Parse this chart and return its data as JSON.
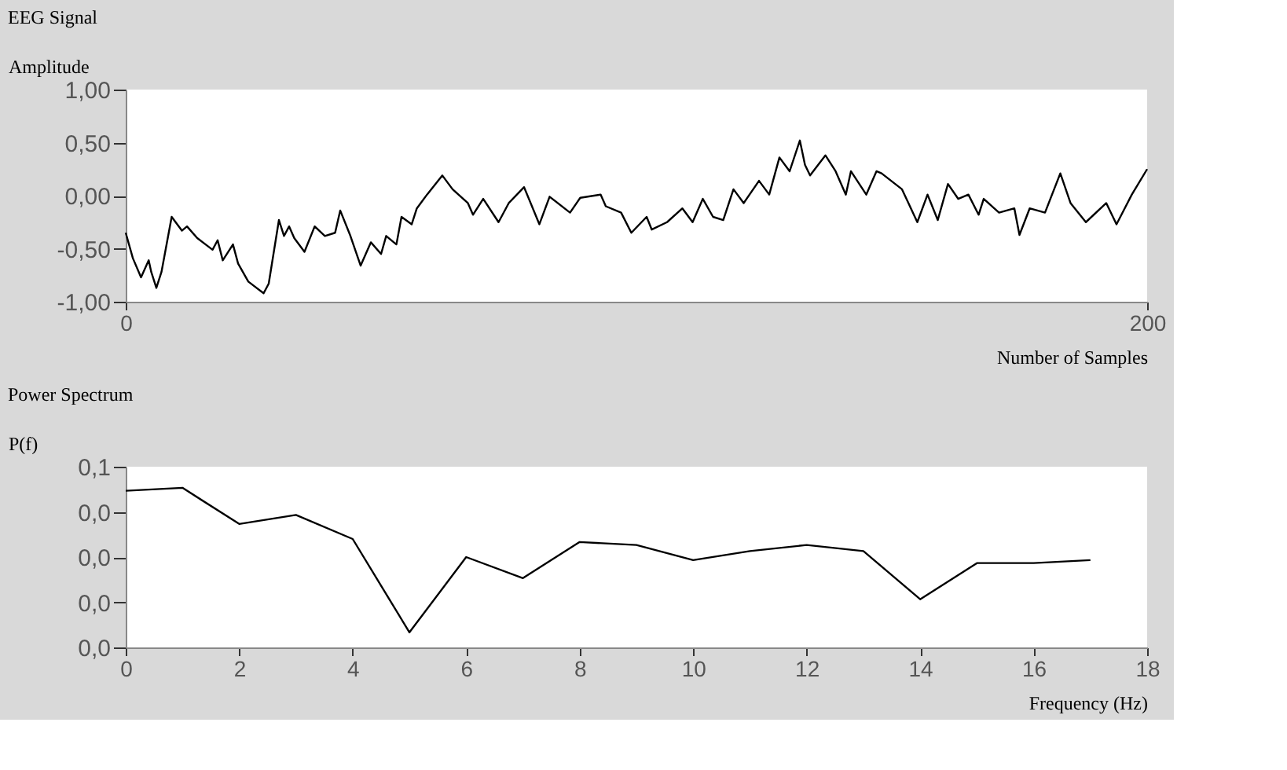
{
  "chart_data": [
    {
      "type": "line",
      "title": "EEG Signal",
      "xlabel": "Number of Samples",
      "ylabel": "Amplitude",
      "xlim": [
        0,
        200
      ],
      "xticks": [
        0,
        200
      ],
      "ylim": [
        -1,
        1
      ],
      "yticks": [
        {
          "value": -1,
          "label": "-1,00"
        },
        {
          "value": -0.5,
          "label": "-0,50"
        },
        {
          "value": 0,
          "label": "0,00"
        },
        {
          "value": 0.5,
          "label": "0,50"
        },
        {
          "value": 1,
          "label": "1,00"
        }
      ],
      "grid": false,
      "series": [
        {
          "color": "#000000",
          "x": [
            0,
            1.4,
            3,
            4.5,
            5,
            6,
            7,
            9,
            11,
            12,
            14,
            17,
            18,
            19,
            21,
            22,
            24,
            27,
            28,
            30,
            31,
            32,
            33,
            35,
            37,
            39,
            41,
            42,
            44,
            46,
            48,
            50,
            51,
            53,
            54,
            56,
            57,
            59,
            62,
            64,
            67,
            68,
            70,
            73,
            75,
            78,
            81,
            83,
            87,
            89,
            93,
            94,
            97,
            99,
            102,
            103,
            106,
            109,
            111,
            113,
            115,
            117,
            119,
            121,
            124,
            126,
            128,
            130,
            132,
            133,
            134,
            137,
            139,
            141,
            142,
            145,
            147,
            148,
            152,
            155,
            157,
            159,
            161,
            163,
            165,
            167,
            168,
            171,
            174,
            175,
            177,
            180,
            183,
            185,
            188,
            192,
            194,
            197,
            200
          ],
          "values": [
            -0.35,
            -0.59,
            -0.77,
            -0.61,
            -0.72,
            -0.87,
            -0.72,
            -0.2,
            -0.33,
            -0.29,
            -0.4,
            -0.51,
            -0.42,
            -0.61,
            -0.46,
            -0.64,
            -0.81,
            -0.92,
            -0.83,
            -0.23,
            -0.38,
            -0.29,
            -0.4,
            -0.53,
            -0.29,
            -0.38,
            -0.35,
            -0.14,
            -0.38,
            -0.66,
            -0.44,
            -0.55,
            -0.38,
            -0.46,
            -0.2,
            -0.27,
            -0.12,
            0.01,
            0.19,
            0.06,
            -0.07,
            -0.18,
            -0.03,
            -0.25,
            -0.07,
            0.08,
            -0.27,
            -0.01,
            -0.16,
            -0.02,
            0.01,
            -0.1,
            -0.16,
            -0.35,
            -0.2,
            -0.32,
            -0.25,
            -0.12,
            -0.25,
            -0.03,
            -0.2,
            -0.23,
            0.06,
            -0.07,
            0.14,
            0.01,
            0.36,
            0.23,
            0.52,
            0.29,
            0.19,
            0.38,
            0.23,
            0.01,
            0.23,
            0.01,
            0.23,
            0.21,
            0.06,
            -0.25,
            0.01,
            -0.23,
            0.11,
            -0.03,
            0.01,
            -0.18,
            -0.03,
            -0.16,
            -0.12,
            -0.37,
            -0.12,
            -0.16,
            0.21,
            -0.07,
            -0.25,
            -0.07,
            -0.27,
            0.01,
            0.25
          ]
        }
      ]
    },
    {
      "type": "line",
      "title": "Power Spectrum",
      "xlabel": "Frequency (Hz)",
      "ylabel": "P(f)",
      "xlim": [
        0,
        18
      ],
      "xticks": [
        0,
        2,
        4,
        6,
        8,
        10,
        12,
        14,
        16,
        18
      ],
      "ylim": [
        0,
        0.06
      ],
      "yticks": [
        {
          "value": 0,
          "label": "0,0"
        },
        {
          "value": 0.015,
          "label": "0,0"
        },
        {
          "value": 0.03,
          "label": "0,0"
        },
        {
          "value": 0.045,
          "label": "0,0"
        },
        {
          "value": 0.06,
          "label": "0,1"
        }
      ],
      "grid": false,
      "series": [
        {
          "color": "#000000",
          "x": [
            0,
            1,
            2,
            3,
            4,
            5,
            6,
            7,
            8,
            9,
            10,
            11,
            12,
            13,
            14,
            15,
            16,
            17
          ],
          "values": [
            0.052,
            0.053,
            0.041,
            0.044,
            0.036,
            0.005,
            0.03,
            0.023,
            0.035,
            0.034,
            0.029,
            0.032,
            0.034,
            0.032,
            0.016,
            0.028,
            0.028,
            0.029
          ]
        }
      ]
    }
  ]
}
